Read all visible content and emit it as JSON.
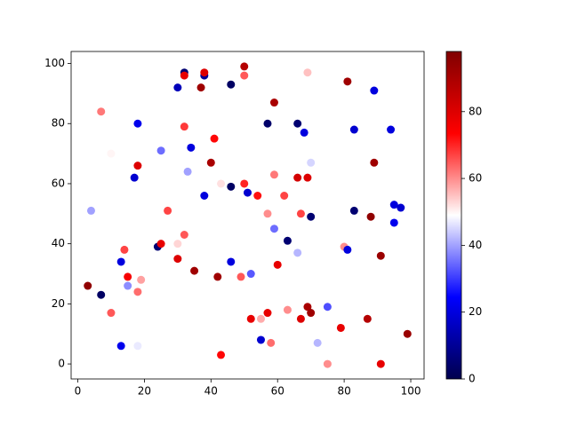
{
  "chart_data": {
    "type": "scatter",
    "x": [
      3,
      7,
      7,
      10,
      10,
      4,
      13,
      13,
      14,
      15,
      15,
      18,
      18,
      19,
      18,
      18,
      17,
      25,
      27,
      24,
      25,
      30,
      30,
      32,
      32,
      33,
      34,
      30,
      32,
      32,
      38,
      38,
      37,
      35,
      38,
      40,
      41,
      42,
      43,
      43,
      46,
      46,
      46,
      50,
      50,
      50,
      51,
      49,
      52,
      54,
      52,
      55,
      55,
      57,
      58,
      57,
      57,
      59,
      59,
      59,
      60,
      63,
      62,
      63,
      66,
      66,
      66,
      68,
      67,
      67,
      69,
      70,
      69,
      70,
      70,
      69,
      72,
      75,
      75,
      79,
      80,
      81,
      81,
      83,
      83,
      87,
      88,
      89,
      89,
      91,
      91,
      94,
      95,
      95,
      97,
      99
    ],
    "y": [
      26,
      23,
      84,
      17,
      70,
      51,
      6,
      34,
      38,
      29,
      26,
      6,
      24,
      28,
      80,
      66,
      62,
      71,
      51,
      39,
      40,
      35,
      40,
      43,
      79,
      64,
      72,
      92,
      97,
      96,
      96,
      97,
      92,
      31,
      56,
      67,
      75,
      29,
      3,
      60,
      93,
      59,
      34,
      99,
      96,
      60,
      57,
      29,
      30,
      56,
      15,
      8,
      15,
      17,
      7,
      50,
      80,
      87,
      63,
      45,
      33,
      41,
      56,
      18,
      37,
      62,
      80,
      77,
      50,
      15,
      19,
      17,
      62,
      49,
      67,
      97,
      7,
      19,
      0,
      12,
      39,
      38,
      94,
      51,
      78,
      15,
      49,
      67,
      91,
      0,
      36,
      78,
      53,
      47,
      52,
      10
    ],
    "c": [
      95,
      3,
      62,
      65,
      50,
      40,
      22,
      20,
      67,
      75,
      38,
      47,
      63,
      58,
      22,
      80,
      18,
      35,
      67,
      5,
      78,
      80,
      53,
      65,
      68,
      40,
      20,
      15,
      5,
      78,
      10,
      80,
      92,
      92,
      20,
      90,
      73,
      92,
      73,
      52,
      3,
      3,
      20,
      88,
      65,
      70,
      18,
      65,
      33,
      72,
      78,
      18,
      57,
      78,
      63,
      60,
      4,
      90,
      62,
      35,
      78,
      5,
      67,
      60,
      42,
      82,
      5,
      20,
      67,
      80,
      90,
      92,
      80,
      5,
      45,
      55,
      42,
      32,
      60,
      78,
      60,
      20,
      92,
      5,
      18,
      88,
      95,
      92,
      20,
      78,
      93,
      20,
      20,
      22,
      18,
      93
    ],
    "xlim": [
      -2,
      104
    ],
    "ylim": [
      -5,
      104
    ],
    "clim": [
      0,
      98
    ],
    "xticks": [
      0,
      20,
      40,
      60,
      80,
      100
    ],
    "yticks": [
      0,
      20,
      40,
      60,
      80,
      100
    ],
    "cticks": [
      0,
      20,
      40,
      60,
      80
    ],
    "colormap": [
      "#00004d",
      "#0000ff",
      "#ffffff",
      "#ff0000",
      "#800000"
    ]
  }
}
